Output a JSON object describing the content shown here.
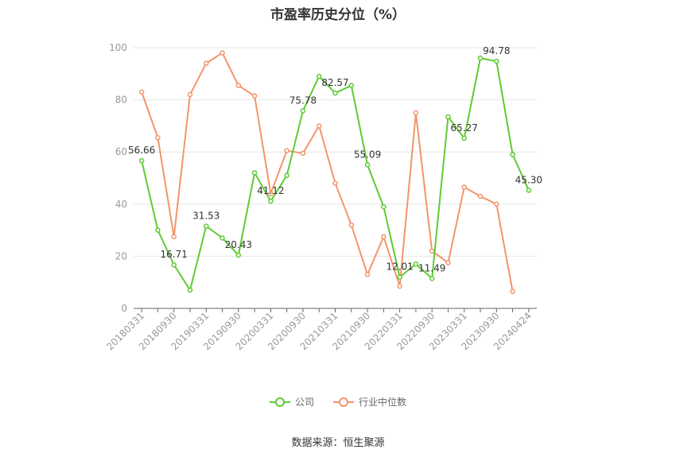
{
  "chart_data": {
    "type": "line",
    "title": "市盈率历史分位（%）",
    "x_tick_labels": [
      "20180331",
      "20180930",
      "20190331",
      "20190930",
      "20200331",
      "20200930",
      "20210331",
      "20210930",
      "20220331",
      "20220930",
      "20230331",
      "20230930",
      "20240424"
    ],
    "ylim": [
      0,
      100
    ],
    "y_ticks": [
      0,
      20,
      40,
      60,
      80,
      100
    ],
    "grid": true,
    "legend_position": "bottom",
    "series": [
      {
        "name": "公司",
        "color": "#5ecb32",
        "values": [
          56.66,
          30,
          16.71,
          7,
          31.53,
          27,
          20.43,
          52,
          41.12,
          51,
          75.78,
          89,
          82.57,
          85.5,
          55.09,
          39,
          12.01,
          17,
          11.49,
          73.5,
          65.27,
          96,
          94.78,
          59,
          45.3
        ],
        "labels": {
          "0": "56.66",
          "2": "16.71",
          "4": "31.53",
          "6": "20.43",
          "8": "41.12",
          "10": "75.78",
          "12": "82.57",
          "14": "55.09",
          "16": "12.01",
          "18": "11.49",
          "20": "65.27",
          "22": "94.78",
          "24": "45.30"
        }
      },
      {
        "name": "行业中位数",
        "color": "#f3956a",
        "values": [
          83,
          65.5,
          27.5,
          82,
          94,
          98,
          85.5,
          81.5,
          44,
          60.5,
          59.5,
          70,
          48,
          32,
          13,
          27.5,
          8.5,
          75,
          22,
          17.5,
          46.5,
          43,
          40,
          6.5,
          null
        ]
      }
    ]
  },
  "source": "数据来源：恒生聚源"
}
